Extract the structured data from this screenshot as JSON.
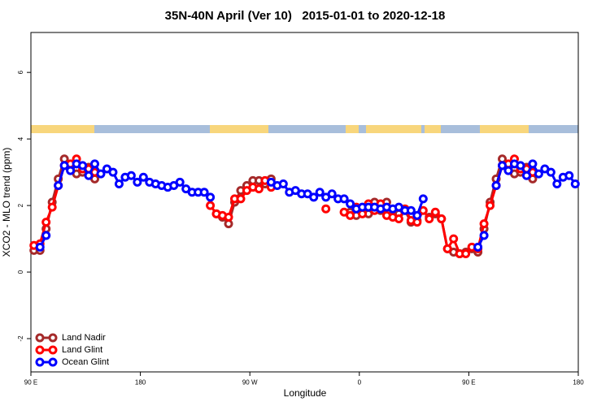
{
  "chart_data": {
    "type": "line",
    "title": "35N-40N April (Ver 10)   2015-01-01 to 2020-12-18",
    "xlabel": "Longitude",
    "ylabel": "XCO2 - MLO trend (ppm)",
    "xlim": [
      90,
      540
    ],
    "xticks": [
      {
        "value": 90,
        "label": "90 E"
      },
      180,
      {
        "value": 270,
        "label": "90 W"
      },
      {
        "value": 360,
        "label": "0"
      },
      {
        "value": 450,
        "label": "90 E"
      },
      {
        "value": 540,
        "label": "180"
      }
    ],
    "ylim": [
      -3,
      7.2
    ],
    "yticks": [
      -2,
      0,
      2,
      4,
      6
    ],
    "legend": "bottomleft",
    "x": [
      92.5,
      97.5,
      102.5,
      107.5,
      112.5,
      117.5,
      122.5,
      127.5,
      132.5,
      137.5,
      142.5,
      147.5,
      152.5,
      157.5,
      162.5,
      167.5,
      172.5,
      177.5,
      182.5,
      187.5,
      192.5,
      197.5,
      202.5,
      207.5,
      212.5,
      217.5,
      222.5,
      227.5,
      232.5,
      237.5,
      242.5,
      247.5,
      252.5,
      257.5,
      262.5,
      267.5,
      272.5,
      277.5,
      282.5,
      287.5,
      292.5,
      297.5,
      302.5,
      307.5,
      312.5,
      317.5,
      322.5,
      327.5,
      332.5,
      337.5,
      342.5,
      347.5,
      352.5,
      357.5,
      362.5,
      367.5,
      372.5,
      377.5,
      382.5,
      387.5,
      392.5,
      397.5,
      402.5,
      407.5,
      412.5,
      417.5,
      422.5,
      427.5,
      432.5,
      437.5,
      442.5,
      447.5,
      452.5,
      457.5,
      462.5,
      467.5,
      472.5,
      477.5,
      482.5,
      487.5,
      492.5,
      497.5,
      502.5,
      507.5,
      512.5,
      517.5,
      522.5,
      527.5,
      532.5,
      537.5
    ],
    "series": [
      {
        "name": "Land Nadir",
        "color": "#a52a2a",
        "values": [
          0.65,
          0.65,
          1.3,
          2.1,
          2.8,
          3.4,
          3.1,
          2.95,
          3.0,
          3.15,
          2.8,
          null,
          null,
          null,
          null,
          null,
          null,
          null,
          null,
          null,
          null,
          null,
          null,
          null,
          null,
          null,
          null,
          null,
          null,
          null,
          1.75,
          1.65,
          1.45,
          2.1,
          2.45,
          2.6,
          2.75,
          2.75,
          2.65,
          2.8,
          null,
          null,
          null,
          null,
          null,
          null,
          null,
          null,
          null,
          null,
          null,
          null,
          1.8,
          1.7,
          1.8,
          1.75,
          2.1,
          1.85,
          2.1,
          1.75,
          1.75,
          1.85,
          1.5,
          1.55,
          null,
          1.65,
          1.75,
          1.6,
          0.7,
          0.6,
          0.55,
          0.6,
          0.7,
          0.6,
          1.3,
          2.1,
          2.8,
          3.4,
          3.1,
          2.95,
          3.0,
          3.15,
          2.8,
          null,
          null,
          null,
          null,
          null,
          null,
          null
        ]
      },
      {
        "name": "Land Glint",
        "color": "#ff0000",
        "values": [
          0.8,
          0.85,
          1.5,
          1.95,
          2.6,
          3.2,
          3.25,
          3.4,
          3.1,
          3.1,
          3.0,
          null,
          null,
          null,
          null,
          null,
          null,
          null,
          null,
          null,
          null,
          null,
          null,
          null,
          null,
          null,
          null,
          null,
          null,
          2.0,
          1.75,
          1.7,
          1.65,
          2.2,
          2.2,
          2.45,
          2.55,
          2.5,
          2.75,
          2.55,
          null,
          null,
          null,
          null,
          null,
          null,
          null,
          null,
          1.9,
          null,
          null,
          1.8,
          1.7,
          1.95,
          1.75,
          2.05,
          1.85,
          2.05,
          1.7,
          1.65,
          1.6,
          1.9,
          1.55,
          1.5,
          1.85,
          1.6,
          1.8,
          1.6,
          0.7,
          1.0,
          0.55,
          0.55,
          0.75,
          0.7,
          1.45,
          2.0,
          2.6,
          3.2,
          3.25,
          3.4,
          3.1,
          3.1,
          3.0,
          null,
          null,
          null,
          null,
          null,
          null,
          null
        ]
      },
      {
        "name": "Ocean Glint",
        "color": "#0000ff",
        "values": [
          null,
          0.75,
          1.1,
          null,
          2.6,
          3.2,
          3.05,
          3.25,
          3.2,
          2.9,
          3.25,
          2.95,
          3.1,
          3.0,
          2.65,
          2.85,
          2.9,
          2.7,
          2.85,
          2.7,
          2.65,
          2.6,
          2.55,
          2.6,
          2.7,
          2.5,
          2.4,
          2.4,
          2.4,
          2.25,
          null,
          null,
          null,
          null,
          null,
          null,
          null,
          null,
          null,
          2.7,
          2.6,
          2.65,
          2.4,
          2.45,
          2.35,
          2.35,
          2.25,
          2.4,
          2.25,
          2.35,
          2.2,
          2.2,
          2.05,
          1.9,
          1.95,
          1.95,
          1.95,
          1.9,
          1.95,
          1.9,
          1.95,
          1.85,
          1.85,
          1.7,
          2.2,
          null,
          null,
          null,
          null,
          null,
          null,
          null,
          null,
          0.75,
          1.1,
          null,
          2.6,
          3.2,
          3.05,
          3.25,
          3.2,
          2.9,
          3.25,
          2.95,
          3.1,
          3.0,
          2.65,
          2.85,
          2.9,
          2.65
        ]
      }
    ]
  }
}
